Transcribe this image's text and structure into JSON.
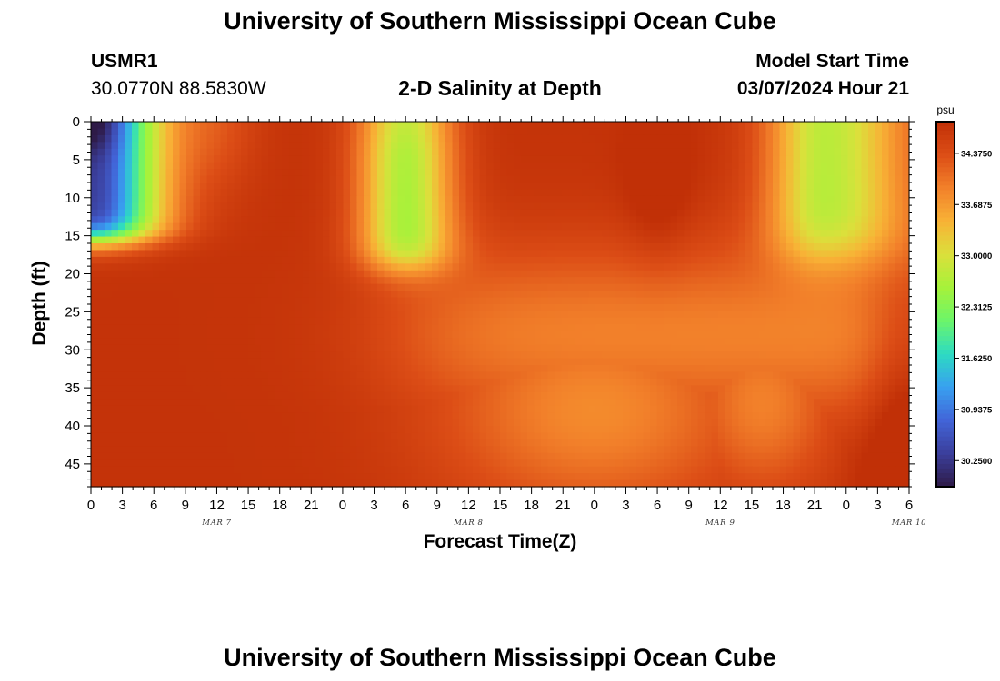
{
  "header": {
    "title": "University of Southern Mississippi Ocean Cube",
    "station_id": "USMR1",
    "station_coords": "30.0770N  88.5830W",
    "subtitle": "2-D Salinity at Depth",
    "model_start_label": "Model Start Time",
    "model_start_value": "03/07/2024 Hour 21"
  },
  "footer": {
    "title": "University of Southern Mississippi Ocean Cube"
  },
  "chart_data": {
    "type": "heatmap",
    "title": "2-D Salinity at Depth",
    "xlabel": "Forecast Time(Z)",
    "ylabel": "Depth (ft)",
    "x_ticks": [
      "0",
      "3",
      "6",
      "9",
      "12",
      "15",
      "18",
      "21",
      "0",
      "3",
      "6",
      "9",
      "12",
      "15",
      "18",
      "21",
      "0",
      "3",
      "6",
      "9",
      "12",
      "15",
      "18",
      "21",
      "0",
      "3",
      "6"
    ],
    "x_day_labels": [
      {
        "label": "MAR 7",
        "hour": 12
      },
      {
        "label": "MAR 8",
        "hour": 36
      },
      {
        "label": "MAR 9",
        "hour": 60
      },
      {
        "label": "MAR 10",
        "hour": 78
      }
    ],
    "xlim_hours": [
      0,
      78
    ],
    "y_ticks": [
      "0",
      "5",
      "10",
      "15",
      "20",
      "25",
      "30",
      "35",
      "40",
      "45"
    ],
    "ylim_ft": [
      0,
      48
    ],
    "y_inverted": true,
    "colorbar": {
      "unit": "psu",
      "min": 29.9,
      "max": 34.8,
      "tick_labels": [
        "34.3750",
        "33.6875",
        "33.0000",
        "32.3125",
        "31.6250",
        "30.9375",
        "30.2500"
      ]
    },
    "salinity_description": {
      "surface_low_centers_psu": [
        {
          "hour": 0,
          "depth_ft": 0,
          "value": 30.1
        },
        {
          "hour": 30,
          "depth_ft": 8,
          "value": 32.5
        },
        {
          "hour": 70,
          "depth_ft": 8,
          "value": 32.6
        }
      ],
      "deep_high_psu": 34.75
    },
    "colors": {
      "scale": [
        "#2e1a47",
        "#3b3f9c",
        "#4264d8",
        "#38a1f0",
        "#2ddbc2",
        "#6cf56a",
        "#a6f23a",
        "#dbe03b",
        "#f8b236",
        "#f2802a",
        "#dc4d16",
        "#c13007"
      ]
    }
  }
}
